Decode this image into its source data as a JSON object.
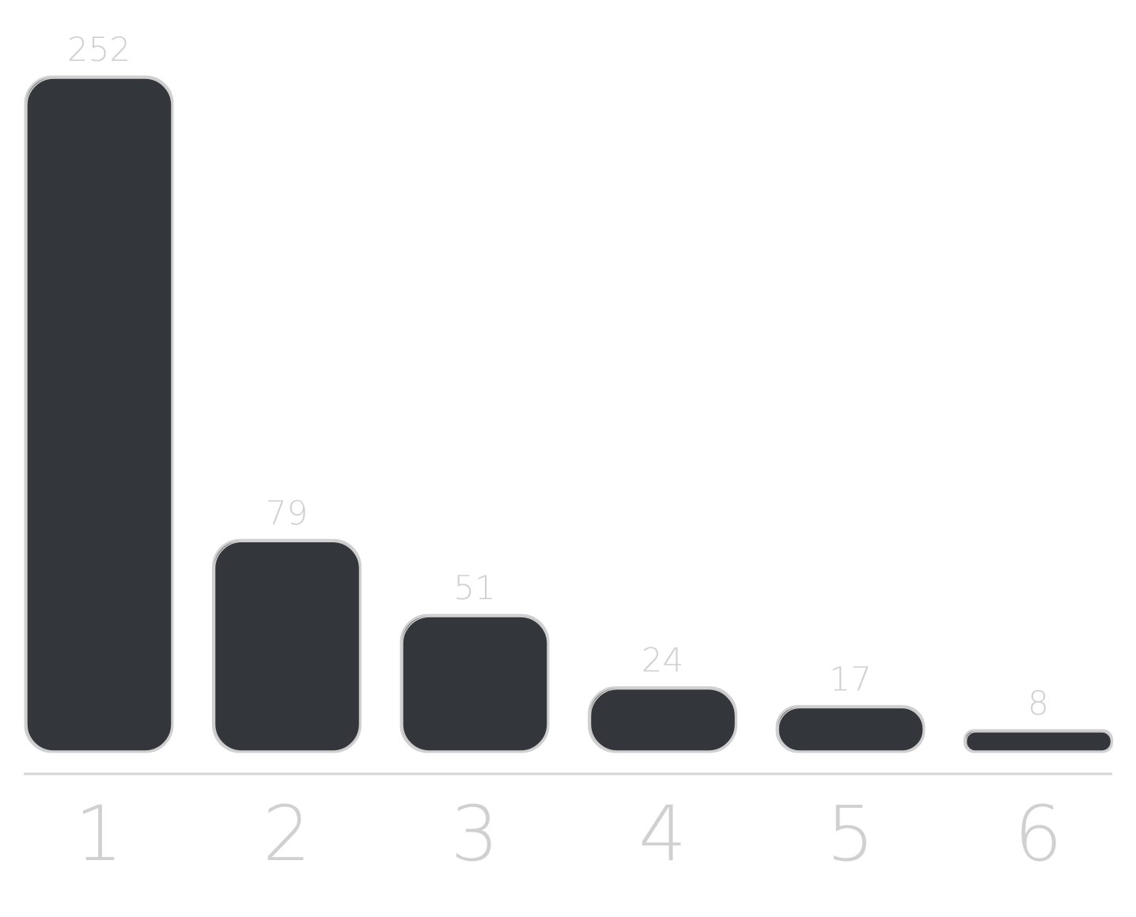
{
  "colors": {
    "bar_fill": "#33373b",
    "bar_outline": "#d0d0d0",
    "label_text": "#d0d0d0",
    "axis_line": "#d6d6d6",
    "background": "#ffffff"
  },
  "chart_data": {
    "type": "bar",
    "categories": [
      "1",
      "2",
      "3",
      "4",
      "5",
      "6"
    ],
    "values": [
      252,
      79,
      51,
      24,
      17,
      8
    ],
    "data_labels": [
      "252",
      "79",
      "51",
      "24",
      "17",
      "8"
    ],
    "title": "",
    "xlabel": "",
    "ylabel": "",
    "ylim": [
      0,
      252
    ],
    "grid": false,
    "legend": "none",
    "style": "hand-drawn sketch"
  }
}
